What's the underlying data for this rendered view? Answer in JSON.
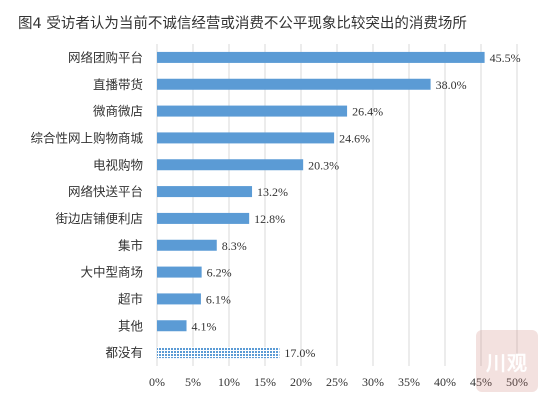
{
  "chart_data": {
    "type": "bar",
    "orientation": "horizontal",
    "title": "图4  受访者认为当前不诚信经营或消费不公平现象比较突出的消费场所",
    "categories": [
      "网络团购平台",
      "直播带货",
      "微商微店",
      "综合性网上购物商城",
      "电视购物",
      "网络快送平台",
      "街边店铺便利店",
      "集市",
      "大中型商场",
      "超市",
      "其他",
      "都没有"
    ],
    "values": [
      45.5,
      38.0,
      26.4,
      24.6,
      20.3,
      13.2,
      12.8,
      8.3,
      6.2,
      6.1,
      4.1,
      17.0
    ],
    "value_labels": [
      "45.5%",
      "38.0%",
      "26.4%",
      "24.6%",
      "20.3%",
      "13.2%",
      "12.8%",
      "8.3%",
      "6.2%",
      "6.1%",
      "4.1%",
      "17.0%"
    ],
    "patterned_last_bar": true,
    "xlim": [
      0,
      50
    ],
    "x_ticks": [
      0,
      5,
      10,
      15,
      20,
      25,
      30,
      35,
      40,
      45,
      50
    ],
    "x_tick_labels": [
      "0%",
      "5%",
      "10%",
      "15%",
      "20%",
      "25%",
      "30%",
      "35%",
      "40%",
      "45%",
      "50%"
    ],
    "grid": true,
    "colors": {
      "bar": "#5b9bd5",
      "grid": "#d9d9d9",
      "text": "#333333"
    }
  },
  "watermark": {
    "text": "川观"
  }
}
